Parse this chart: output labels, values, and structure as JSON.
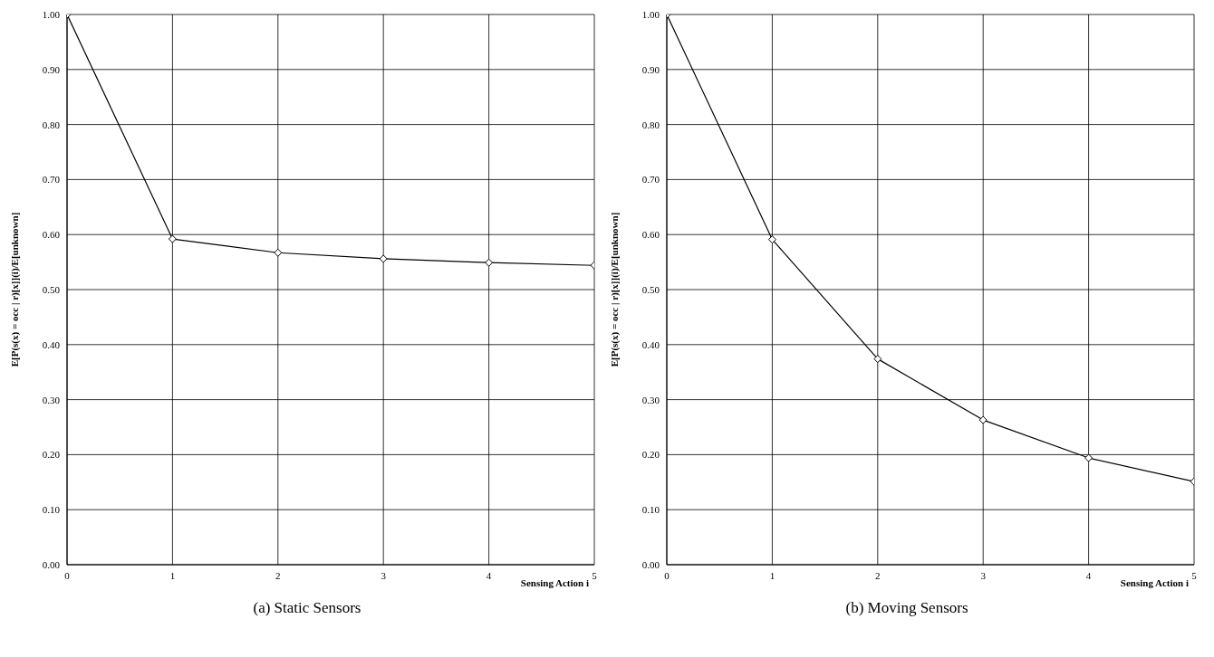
{
  "chart_data": [
    {
      "type": "line",
      "title": "(a)  Static Sensors",
      "xlabel": "Sensing Action i",
      "ylabel": "E[P(s(x) = occ | r)[x]](i)/E[unknown]",
      "x": [
        0,
        1,
        2,
        3,
        4,
        5
      ],
      "series": [
        {
          "color": "#000000",
          "values": [
            1.0,
            0.592,
            0.567,
            0.556,
            0.549,
            0.544
          ]
        }
      ],
      "xlim": [
        0,
        5
      ],
      "xticks": [
        0,
        1,
        2,
        3,
        4,
        5
      ],
      "ylim": [
        0,
        1
      ],
      "yticks": [
        {
          "value": 0,
          "label": "0.00"
        },
        {
          "value": 0.1,
          "label": "0.10"
        },
        {
          "value": 0.2,
          "label": "0.20"
        },
        {
          "value": 0.3,
          "label": "0.30"
        },
        {
          "value": 0.4,
          "label": "0.40"
        },
        {
          "value": 0.5,
          "label": "0.50"
        },
        {
          "value": 0.6,
          "label": "0.60"
        },
        {
          "value": 0.7,
          "label": "0.70"
        },
        {
          "value": 0.8,
          "label": "0.80"
        },
        {
          "value": 0.9,
          "label": "0.90"
        },
        {
          "value": 1,
          "label": "1.00"
        }
      ],
      "grid": true,
      "marker": "diamond",
      "line_style": "solid"
    },
    {
      "type": "line",
      "title": "(b)  Moving Sensors",
      "xlabel": "Sensing Action i",
      "ylabel": "E[P(s(x) = occ | r)[x]](i)/E[unknown]",
      "x": [
        0,
        1,
        2,
        3,
        4,
        5
      ],
      "series": [
        {
          "color": "#000000",
          "values": [
            1.0,
            0.591,
            0.374,
            0.263,
            0.194,
            0.151
          ]
        }
      ],
      "xlim": [
        0,
        5
      ],
      "xticks": [
        0,
        1,
        2,
        3,
        4,
        5
      ],
      "ylim": [
        0,
        1
      ],
      "yticks": [
        {
          "value": 0,
          "label": "0.00"
        },
        {
          "value": 0.1,
          "label": "0.10"
        },
        {
          "value": 0.2,
          "label": "0.20"
        },
        {
          "value": 0.3,
          "label": "0.30"
        },
        {
          "value": 0.4,
          "label": "0.40"
        },
        {
          "value": 0.5,
          "label": "0.50"
        },
        {
          "value": 0.6,
          "label": "0.60"
        },
        {
          "value": 0.7,
          "label": "0.70"
        },
        {
          "value": 0.8,
          "label": "0.80"
        },
        {
          "value": 0.9,
          "label": "0.90"
        },
        {
          "value": 1,
          "label": "1.00"
        }
      ],
      "grid": true,
      "marker": "diamond",
      "line_style": "solid"
    }
  ]
}
